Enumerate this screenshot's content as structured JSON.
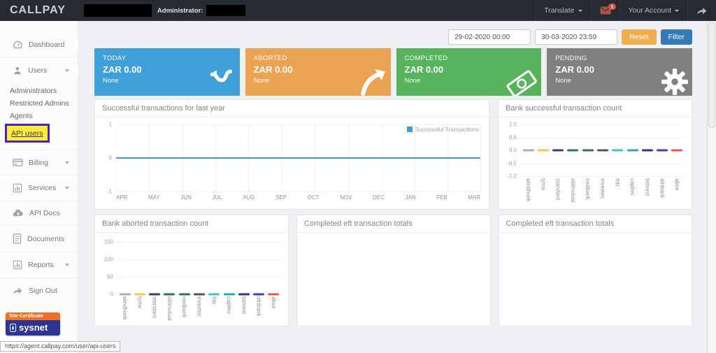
{
  "navbar": {
    "brand": "CALLPAY",
    "administrator_label": "Administrator:",
    "translate_label": "Translate",
    "unread_count": "1",
    "your_account_label": "Your Account"
  },
  "sidebar": {
    "dashboard": "Dashboard",
    "users": "Users",
    "users_submenu": [
      "Administrators",
      "Restricted Admins",
      "Agents",
      "API users"
    ],
    "billing": "Billing",
    "services": "Services",
    "api_docs": "API Docs",
    "documents": "Documents",
    "reports": "Reports",
    "sign_out": "Sign Out",
    "certificate_label": "Site Certificate",
    "certificate_brand": "sysnet"
  },
  "filters": {
    "date_from": "29-02-2020 00:00",
    "date_to": "30-03-2020 23:59",
    "reset_label": "Reset",
    "filter_label": "Filter"
  },
  "stat_cards": [
    {
      "title": "TODAY",
      "amount": "ZAR 0.00",
      "subtitle": "None",
      "color": "#3f9fd8",
      "icon": "refresh-arrow"
    },
    {
      "title": "ABORTED",
      "amount": "ZAR 0.00",
      "subtitle": "None",
      "color": "#eaa451",
      "icon": "arrow-up-right"
    },
    {
      "title": "COMPLETED",
      "amount": "ZAR 0.00",
      "subtitle": "None",
      "color": "#58b45c",
      "icon": "banknote"
    },
    {
      "title": "PENDING",
      "amount": "ZAR 0.00",
      "subtitle": "None",
      "color": "#808080",
      "icon": "gear"
    }
  ],
  "panels": {
    "completed_eft_titles": [
      "Completed eft transaction totals",
      "Completed eft transaction totals"
    ]
  },
  "status_url": "https://agent.callpay.com/user/api-users",
  "colors": {
    "reset_orange": "#f0ad4e",
    "filter_blue": "#337ab7",
    "badge_red": "#e0493c",
    "highlight_yellow": "#ffec3d",
    "highlight_border": "#4a24b8",
    "sysnet_orange": "#f26f21",
    "sysnet_blue": "#2d3590"
  },
  "chart_data": [
    {
      "type": "line",
      "title": "Successful transactions for last year",
      "x": [
        "APR",
        "MAY",
        "JUN",
        "JUL",
        "AUG",
        "SEP",
        "OCT",
        "NOV",
        "DEC",
        "JAN",
        "FEB",
        "MAR"
      ],
      "series": [
        {
          "name": "Successful Transactions",
          "color": "#3d9bd9",
          "values": [
            0,
            0,
            0,
            0,
            0,
            0,
            0,
            0,
            0,
            0,
            0,
            0
          ]
        }
      ],
      "ylim": [
        -1,
        1
      ],
      "yticks": [
        {
          "v": 1,
          "label": "1"
        },
        {
          "v": 0,
          "label": "0"
        },
        {
          "v": -1,
          "label": "-1"
        }
      ],
      "legend_position": "top-right",
      "grid": true
    },
    {
      "type": "bar",
      "title": "Bank successful transaction count",
      "categories": [
        "windhoek",
        "tyme",
        "standard",
        "oldmutual",
        "nedbank",
        "investec",
        "fnb",
        "capitec",
        "bidvest",
        "afribank",
        "absa"
      ],
      "values": [
        0,
        0,
        0,
        0,
        0,
        0,
        0,
        0,
        0,
        0,
        0
      ],
      "bar_colors": [
        "#adadad",
        "#f6c54b",
        "#333a7d",
        "#1f7a5f",
        "#35714f",
        "#4f5458",
        "#41c0cf",
        "#2fa3b5",
        "#2e3192",
        "#3f3fb8",
        "#ea5455"
      ],
      "ylim": [
        -1,
        1
      ],
      "yticks": [
        {
          "v": 1,
          "label": "1.0"
        },
        {
          "v": 0.5,
          "label": "0.5"
        },
        {
          "v": 0,
          "label": "0.0"
        },
        {
          "v": -0.5,
          "label": "-0.5"
        },
        {
          "v": -1,
          "label": "-1.0"
        }
      ],
      "grid": true
    },
    {
      "type": "bar",
      "title": "Bank aborted transaction count",
      "categories": [
        "windhoek",
        "tyme",
        "standard",
        "oldmutual",
        "nedbank",
        "investec",
        "fnb",
        "capitec",
        "bidvest",
        "afribank",
        "absa"
      ],
      "values": [
        0,
        0,
        0,
        0,
        0,
        0,
        0,
        0,
        0,
        0,
        0
      ],
      "bar_colors": [
        "#adadad",
        "#f6c54b",
        "#333a7d",
        "#1f7a5f",
        "#35714f",
        "#4f5458",
        "#41c0cf",
        "#2fa3b5",
        "#2e3192",
        "#3f3fb8",
        "#ea5455"
      ],
      "ylim": [
        0,
        160
      ],
      "yticks": [
        {
          "v": 150,
          "label": "150"
        },
        {
          "v": 100,
          "label": "100"
        },
        {
          "v": 50,
          "label": "50"
        },
        {
          "v": 0,
          "label": "0"
        }
      ],
      "grid": true
    }
  ]
}
